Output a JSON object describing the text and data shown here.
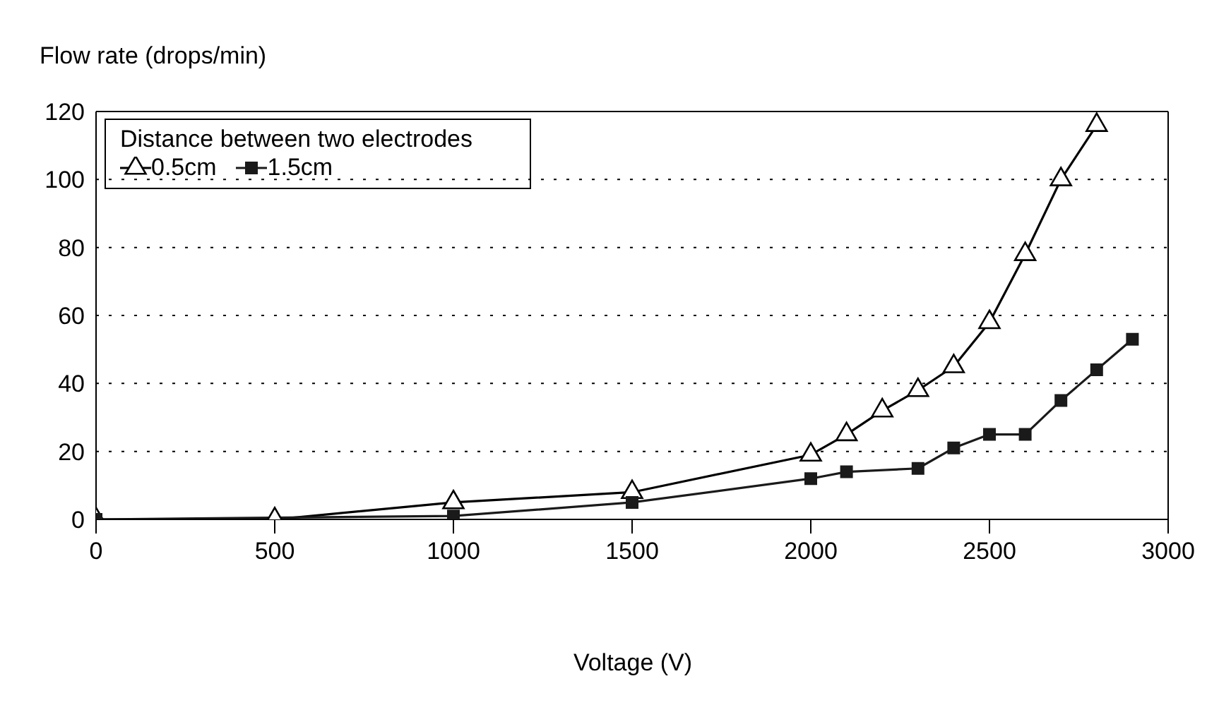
{
  "chart_data": {
    "type": "line",
    "xlabel": "Voltage (V)",
    "ylabel": "Flow rate (drops/min)",
    "legend_title": "Distance between two electrodes",
    "legend": "top left",
    "grid": "y",
    "line_style": "solid",
    "xlim": [
      0,
      3000
    ],
    "xticks": [
      0,
      500,
      1000,
      1500,
      2000,
      2500,
      3000
    ],
    "ylim": [
      0,
      120
    ],
    "yticks": [
      0,
      20,
      40,
      60,
      80,
      100,
      120
    ],
    "series": [
      {
        "name": "0.5cm",
        "color": "#000000",
        "marker": "triangle",
        "x": [
          0,
          500,
          1000,
          1500,
          2000,
          2100,
          2200,
          2300,
          2400,
          2500,
          2600,
          2700,
          2800
        ],
        "values": [
          0,
          0,
          5,
          8,
          19,
          25,
          32,
          38,
          45,
          58,
          78,
          100,
          116
        ]
      },
      {
        "name": "1.5cm",
        "color": "#1a1a1a",
        "marker": "square",
        "x": [
          0,
          1000,
          1500,
          2000,
          2100,
          2300,
          2400,
          2500,
          2600,
          2700,
          2800,
          2900
        ],
        "values": [
          0,
          1,
          5,
          12,
          14,
          15,
          21,
          25,
          25,
          35,
          44,
          53
        ]
      }
    ]
  }
}
